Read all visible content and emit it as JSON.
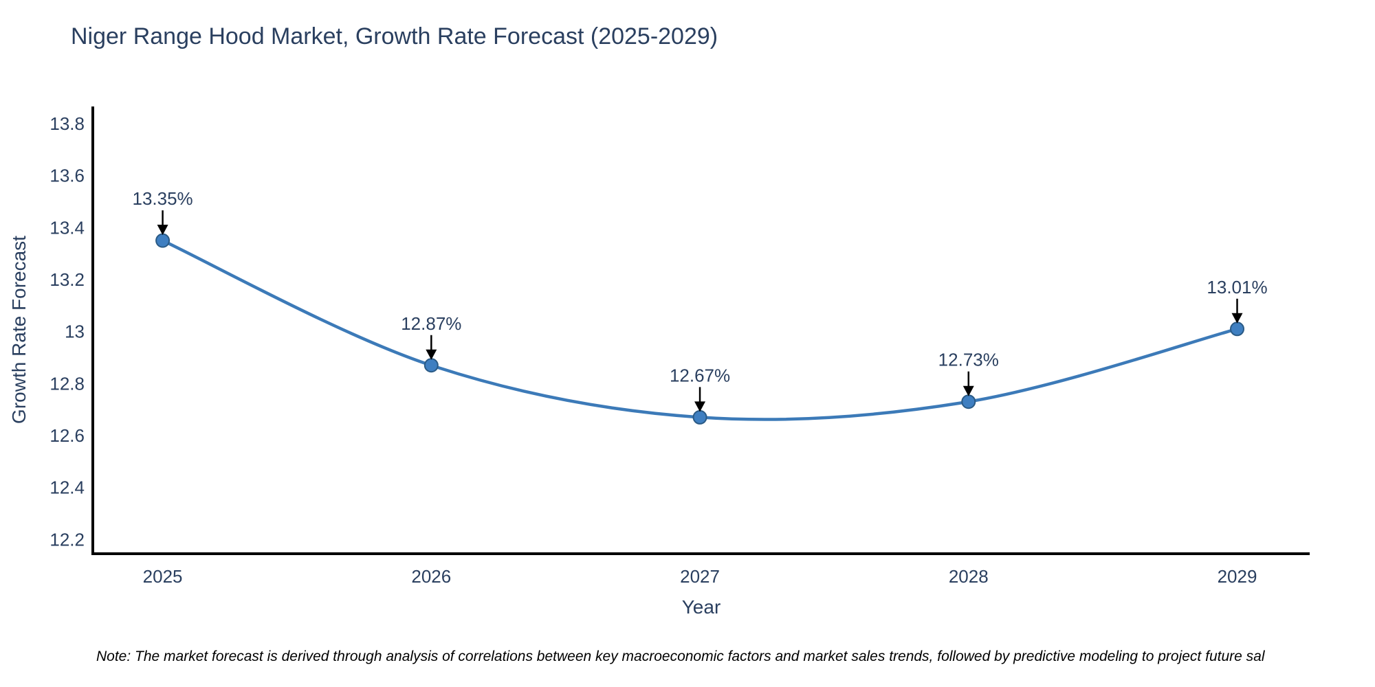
{
  "header": {
    "title": "Niger Range Hood Market, Growth Rate Forecast (2025-2029)"
  },
  "footnote": {
    "text": "Note: The market forecast is derived through analysis of correlations between key macroeconomic factors and market sales trends, followed by predictive modeling to project future sal"
  },
  "chart_data": {
    "type": "line",
    "title": "Niger Range Hood Market, Growth Rate Forecast (2025-2029)",
    "xlabel": "Year",
    "ylabel": "Growth Rate Forecast",
    "categories": [
      "2025",
      "2026",
      "2027",
      "2028",
      "2029"
    ],
    "x": [
      2025,
      2026,
      2027,
      2028,
      2029
    ],
    "series": [
      {
        "name": "Growth Rate Forecast",
        "values": [
          13.35,
          12.87,
          12.67,
          12.73,
          13.01
        ],
        "point_labels": [
          "13.35%",
          "12.87%",
          "12.67%",
          "12.73%",
          "13.01%"
        ]
      }
    ],
    "line_shape": "spline",
    "markers": true,
    "annotations_arrows": true,
    "yticks": [
      12.2,
      12.4,
      12.6,
      12.8,
      13,
      13.2,
      13.4,
      13.6,
      13.8
    ],
    "ytick_labels": [
      "12.2",
      "12.4",
      "12.6",
      "12.8",
      "13",
      "13.2",
      "13.4",
      "13.6",
      "13.8"
    ],
    "ylim": [
      12.145,
      13.866
    ],
    "xlim": [
      2024.74,
      2029.27
    ],
    "grid": false,
    "legend": false,
    "colors": {
      "line": "#3c7ab8",
      "marker_fill": "#3f7fc1",
      "marker_edge": "#2a5a85",
      "text": "#2a3f5f",
      "axis": "#000000",
      "arrow": "#000000",
      "background": "#ffffff"
    }
  }
}
